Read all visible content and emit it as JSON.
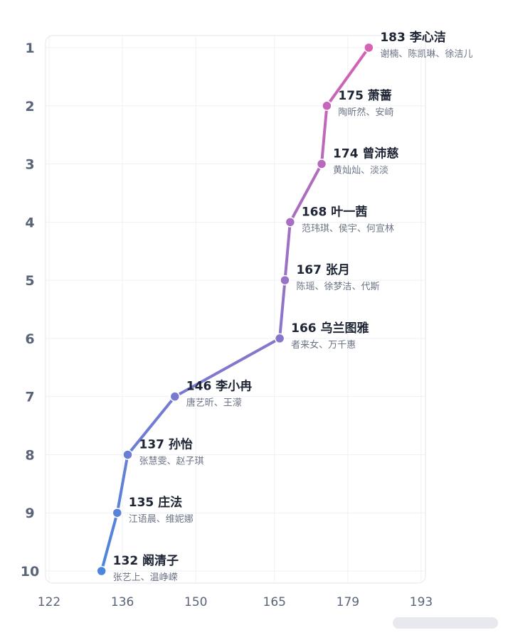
{
  "chart_data": {
    "type": "line",
    "x_ticks": [
      122,
      136,
      150,
      165,
      179,
      193
    ],
    "y_ticks": [
      1,
      2,
      3,
      4,
      5,
      6,
      7,
      8,
      9,
      10
    ],
    "xlim": [
      122,
      193
    ],
    "ylim": [
      10,
      1
    ],
    "y_inverted": true,
    "grid": true,
    "gradient": {
      "start_color": "#4a86de",
      "end_color": "#d562b3"
    },
    "points": [
      {
        "rank": 1,
        "value": 183,
        "name": "李心洁",
        "sub": "谢楠、陈凯琳、徐洁儿"
      },
      {
        "rank": 2,
        "value": 175,
        "name": "萧蔷",
        "sub": "陶昕然、安崎"
      },
      {
        "rank": 3,
        "value": 174,
        "name": "曾沛慈",
        "sub": "黄灿灿、淡淡"
      },
      {
        "rank": 4,
        "value": 168,
        "name": "叶一茜",
        "sub": "范玮琪、侯宇、何宣林"
      },
      {
        "rank": 5,
        "value": 167,
        "name": "张月",
        "sub": "陈瑶、徐梦洁、代斯"
      },
      {
        "rank": 6,
        "value": 166,
        "name": "乌兰图雅",
        "sub": "者来女、万千惠"
      },
      {
        "rank": 7,
        "value": 146,
        "name": "李小冉",
        "sub": "唐艺昕、王濛"
      },
      {
        "rank": 8,
        "value": 137,
        "name": "孙怡",
        "sub": "张慧雯、赵子琪"
      },
      {
        "rank": 9,
        "value": 135,
        "name": "庄法",
        "sub": "江语晨、维妮娜"
      },
      {
        "rank": 10,
        "value": 132,
        "name": "阚清子",
        "sub": "张艺上、温峥嵘"
      }
    ]
  }
}
